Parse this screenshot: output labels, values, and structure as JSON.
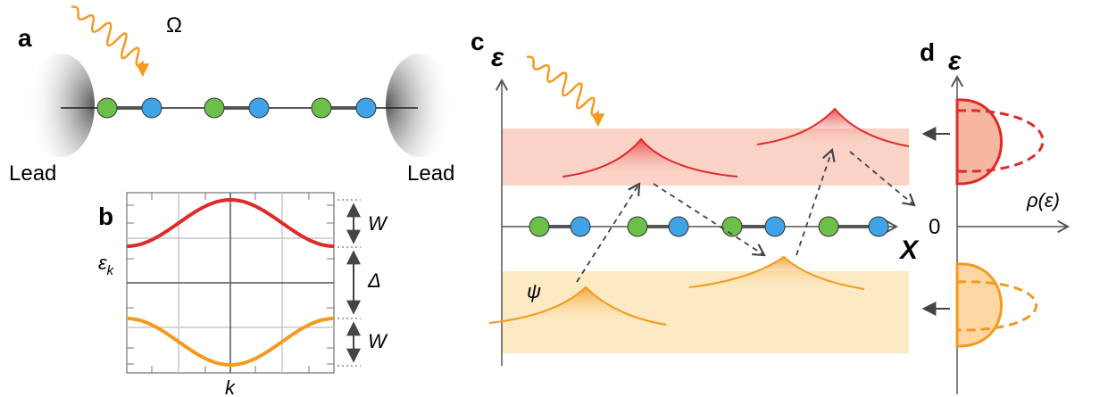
{
  "panels": {
    "a": "a",
    "b": "b",
    "c": "c",
    "d": "d"
  },
  "panel_a": {
    "omega": "Ω",
    "lead_left": "Lead",
    "lead_right": "Lead"
  },
  "panel_b": {
    "ylabel": "ε",
    "ysub": "k",
    "xlabel": "k",
    "bandwidth_top": "W",
    "gap": "Δ",
    "bandwidth_bottom": "W"
  },
  "panel_c": {
    "ylabel": "ε",
    "xlabel": "X",
    "psi": "ψ"
  },
  "panel_d": {
    "ylabel": "ε",
    "xlabel": "ρ(ε)",
    "zero": "0"
  },
  "colors": {
    "green_site": "#6cc04a",
    "blue_site": "#3fa3e8",
    "red_band": "#e02a2a",
    "orange_band": "#f39a1f",
    "upper_band_fill": "#fbd3c6",
    "lower_band_fill": "#fde9c3"
  }
}
